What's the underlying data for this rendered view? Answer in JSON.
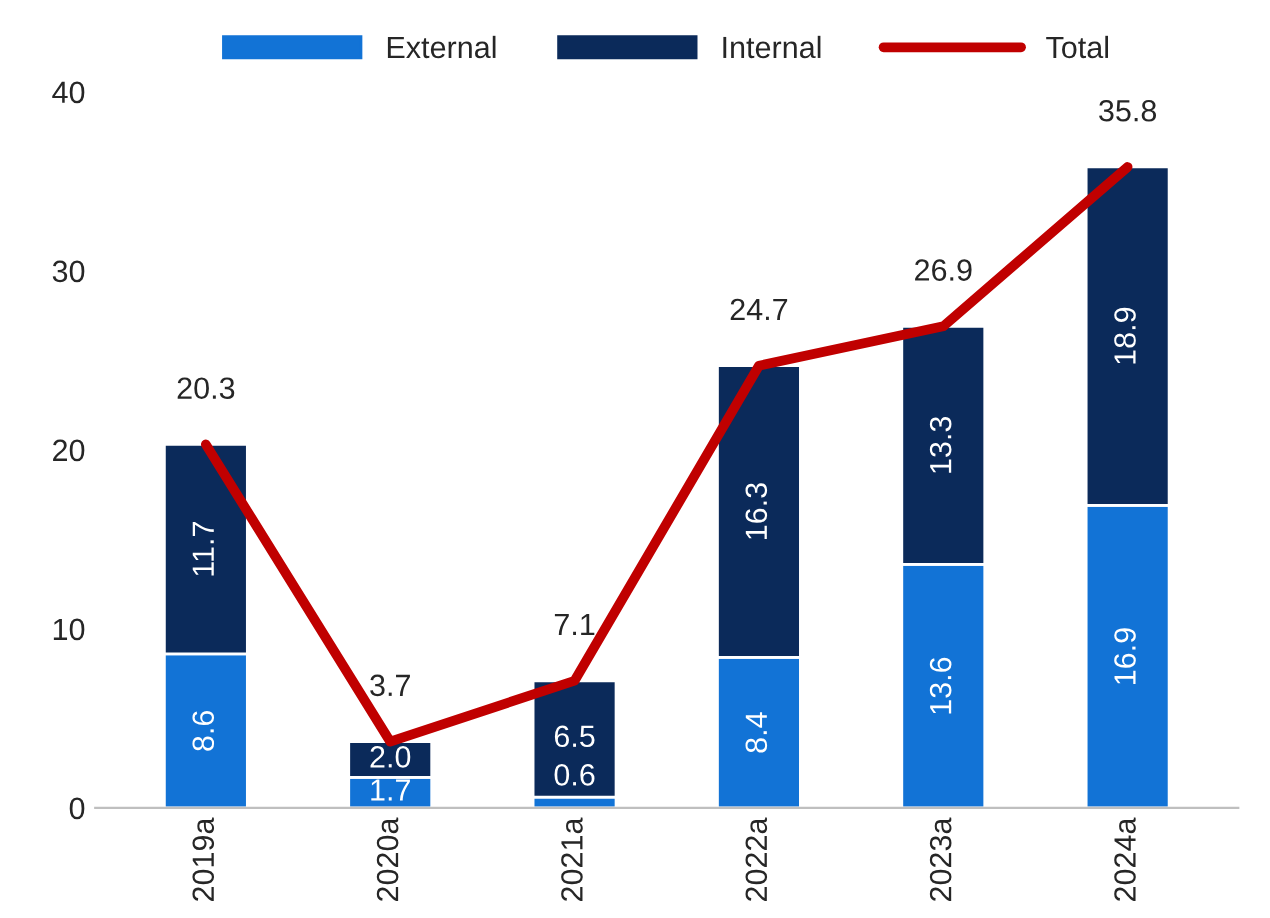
{
  "chart_data": {
    "type": "bar",
    "stacked": true,
    "categories": [
      "2019a",
      "2020a",
      "2021a",
      "2022a",
      "2023a",
      "2024a"
    ],
    "series": [
      {
        "name": "External",
        "color": "#1273d6",
        "values": [
          8.6,
          1.7,
          0.6,
          8.4,
          13.6,
          16.9
        ]
      },
      {
        "name": "Internal",
        "color": "#0b2a5a",
        "values": [
          11.7,
          2.0,
          6.5,
          16.3,
          13.3,
          18.9
        ],
        "value_labels": [
          "11.7",
          "2.0",
          "6.5",
          "16.3",
          "13.3",
          "18.9"
        ]
      },
      {
        "name": "Total",
        "type": "line",
        "color": "#c00000",
        "values": [
          20.3,
          3.7,
          7.1,
          24.7,
          26.9,
          35.8
        ]
      }
    ],
    "ylim": [
      0,
      40
    ],
    "yticks": [
      0,
      10,
      20,
      30,
      40
    ],
    "grid": false,
    "legend": "top",
    "data_labels": true,
    "marker": "none",
    "line_style": "solid"
  }
}
